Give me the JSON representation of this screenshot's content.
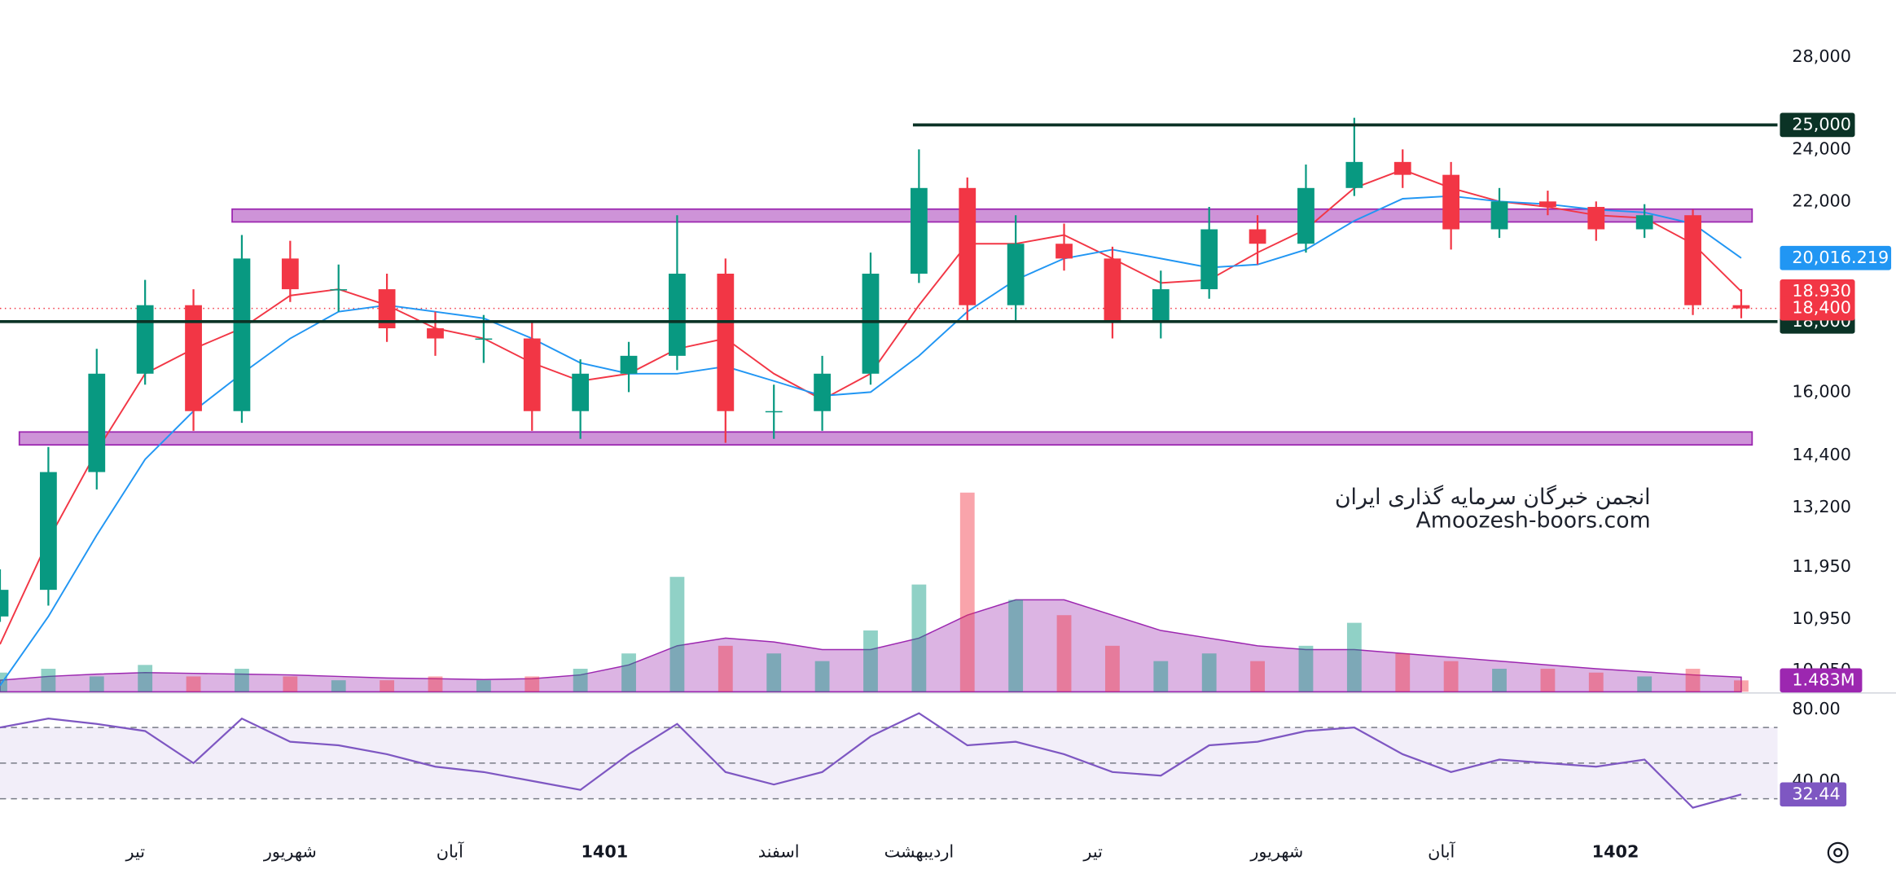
{
  "chart_data": {
    "type": "candlestick",
    "x": [
      0,
      1,
      2,
      3,
      4,
      5,
      6,
      7,
      8,
      9,
      10,
      11,
      12,
      13,
      14,
      15,
      16,
      17,
      18,
      19,
      20,
      21,
      22,
      23,
      24,
      25,
      26,
      27,
      28,
      29,
      30,
      31,
      32,
      33,
      34,
      35,
      36
    ],
    "open": [
      11000,
      11500,
      14000,
      16500,
      18500,
      15500,
      20000,
      19000,
      19000,
      17800,
      17500,
      17500,
      15500,
      16500,
      17000,
      19500,
      15500,
      15500,
      16500,
      19500,
      22500,
      18500,
      20500,
      20000,
      18000,
      19000,
      21000,
      20500,
      22500,
      23500,
      23000,
      21000,
      22000,
      21800,
      21000,
      21500,
      18500
    ],
    "high": [
      11900,
      14600,
      17200,
      19300,
      19000,
      20800,
      20600,
      19800,
      19500,
      18300,
      18200,
      18000,
      16900,
      17400,
      21500,
      20000,
      16200,
      17000,
      20200,
      24000,
      22900,
      21500,
      21200,
      20400,
      19600,
      21800,
      21500,
      23400,
      25300,
      24000,
      23500,
      22500,
      22400,
      22000,
      21900,
      21700,
      19000
    ],
    "low": [
      10900,
      11200,
      13600,
      16200,
      15000,
      15200,
      18600,
      18300,
      17400,
      17000,
      16800,
      15000,
      14800,
      16000,
      16600,
      14700,
      14800,
      15000,
      16200,
      19200,
      18000,
      18000,
      19600,
      17500,
      17500,
      18700,
      19800,
      20200,
      22200,
      22500,
      20300,
      20700,
      21500,
      20600,
      20700,
      18200,
      18100
    ],
    "close": [
      11500,
      14000,
      16500,
      18500,
      15500,
      20000,
      19000,
      19000,
      17800,
      17500,
      17500,
      15500,
      16500,
      17000,
      19500,
      15500,
      15500,
      16500,
      19500,
      22500,
      18500,
      20500,
      20000,
      18000,
      19000,
      21000,
      20500,
      22500,
      23500,
      23000,
      21000,
      22000,
      21800,
      21000,
      21500,
      18500,
      18400
    ],
    "colors": {
      "up": "#089981",
      "down": "#f23645"
    },
    "xlim": [
      0,
      36.75
    ],
    "ylim": [
      9700,
      30800
    ],
    "log_scale": true,
    "yticks": [
      {
        "value": 28000,
        "label": "28,000"
      },
      {
        "value": 24000,
        "label": "24,000"
      },
      {
        "value": 22000,
        "label": "22,000"
      },
      {
        "value": 16000,
        "label": "16,000"
      },
      {
        "value": 14400,
        "label": "14,400"
      },
      {
        "value": 13200,
        "label": "13,200"
      },
      {
        "value": 11950,
        "label": "11,950"
      },
      {
        "value": 10950,
        "label": "10,950"
      },
      {
        "value": 10050,
        "label": "10,050"
      }
    ],
    "xticks": [
      {
        "value": 2.8,
        "label": "تیر"
      },
      {
        "value": 6,
        "label": "شهریور"
      },
      {
        "value": 9.3,
        "label": "آبان"
      },
      {
        "value": 12.5,
        "label": "1401"
      },
      {
        "value": 16.1,
        "label": "اسفند"
      },
      {
        "value": 19,
        "label": "اردیبهشت"
      },
      {
        "value": 22.6,
        "label": "تیر"
      },
      {
        "value": 26.4,
        "label": "شهریور"
      },
      {
        "value": 29.8,
        "label": "آبان"
      },
      {
        "value": 33.4,
        "label": "1402"
      }
    ],
    "moving_averages": [
      {
        "color": "#f23645",
        "values": [
          10500,
          12500,
          14500,
          16500,
          17200,
          17800,
          18800,
          19000,
          18500,
          17800,
          17500,
          16800,
          16300,
          16500,
          17200,
          17500,
          16500,
          15800,
          16500,
          18500,
          20500,
          20500,
          20800,
          20000,
          19200,
          19300,
          20200,
          21000,
          22500,
          23200,
          22500,
          22000,
          21800,
          21500,
          21400,
          20500,
          18930
        ]
      },
      {
        "color": "#2196f3",
        "values": [
          9800,
          11000,
          12600,
          14300,
          15500,
          16500,
          17500,
          18300,
          18500,
          18300,
          18100,
          17500,
          16800,
          16500,
          16500,
          16700,
          16300,
          15900,
          16000,
          17000,
          18300,
          19300,
          20000,
          20300,
          20000,
          19700,
          19800,
          20300,
          21300,
          22100,
          22200,
          22000,
          21900,
          21700,
          21600,
          21200,
          20016.219
        ]
      }
    ],
    "levels": [
      {
        "value": 25000,
        "label": "25,000"
      },
      {
        "value": 18000,
        "label": "18,000"
      }
    ],
    "level_color": "#0b3326",
    "zones": [
      {
        "low": 21260,
        "high": 21720
      },
      {
        "low": 14650,
        "high": 14970
      }
    ],
    "zone_color": "#ce93d8",
    "price_labels": [
      {
        "value": 20016.219,
        "label": "20,016.219",
        "color": "#2196f3"
      },
      {
        "value": 18930,
        "label": "18,930",
        "color": "#f23645"
      },
      {
        "value": 18400,
        "label": "18,400",
        "color": "#f23645"
      }
    ],
    "watermark": [
      "انجمن خبرگان سرمایه گذاری ایران",
      "Amoozesh-boors.com"
    ],
    "volume": {
      "values": [
        2500000,
        3000000,
        2000000,
        3500000,
        2000000,
        3000000,
        2000000,
        1500000,
        1500000,
        2000000,
        1500000,
        2000000,
        3000000,
        5000000,
        15000000,
        6000000,
        5000000,
        4000000,
        8000000,
        14000000,
        26000000,
        12000000,
        10000000,
        6000000,
        4000000,
        5000000,
        4000000,
        6000000,
        9000000,
        5000000,
        4000000,
        3000000,
        3000000,
        2500000,
        2000000,
        3000000,
        1483000
      ],
      "ma_values": [
        1500000,
        2000000,
        2300000,
        2500000,
        2400000,
        2300000,
        2200000,
        2000000,
        1800000,
        1700000,
        1600000,
        1700000,
        2200000,
        3500000,
        6000000,
        7000000,
        6500000,
        5500000,
        5500000,
        7000000,
        10000000,
        12000000,
        12000000,
        10000000,
        8000000,
        7000000,
        6000000,
        5500000,
        5500000,
        5000000,
        4500000,
        4000000,
        3500000,
        3000000,
        2600000,
        2200000,
        1900000
      ],
      "ylim": [
        0,
        30000000
      ],
      "color": "#9c27b0",
      "last_label": {
        "value": 1483000,
        "label": "1.483M"
      }
    },
    "rsi": {
      "values": [
        70,
        75,
        72,
        68,
        50,
        75,
        62,
        60,
        55,
        48,
        45,
        40,
        35,
        55,
        72,
        45,
        38,
        45,
        65,
        78,
        60,
        62,
        55,
        45,
        43,
        60,
        62,
        68,
        70,
        55,
        45,
        52,
        50,
        48,
        52,
        25,
        32.44
      ],
      "ylim": [
        10,
        88
      ],
      "yticks": [
        {
          "value": 80,
          "label": "80.00"
        },
        {
          "value": 40,
          "label": "40.00"
        }
      ],
      "levels": [
        70,
        50,
        30
      ],
      "color": "#7e57c2",
      "last_label": {
        "value": 32.44,
        "label": "32.44"
      }
    }
  }
}
